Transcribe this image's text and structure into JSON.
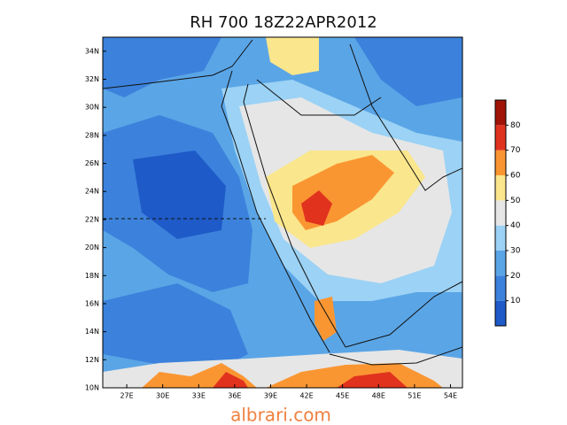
{
  "title": "RH 700 18Z22APR2012",
  "map": {
    "lon_range": [
      25,
      55
    ],
    "lat_range": [
      10,
      35
    ],
    "lon_labels": [
      {
        "value": 27,
        "label": "27E"
      },
      {
        "value": 30,
        "label": "30E"
      },
      {
        "value": 33,
        "label": "33E"
      },
      {
        "value": 36,
        "label": "36E"
      },
      {
        "value": 39,
        "label": "39E"
      },
      {
        "value": 42,
        "label": "42E"
      },
      {
        "value": 45,
        "label": "45E"
      },
      {
        "value": 48,
        "label": "48E"
      },
      {
        "value": 51,
        "label": "51E"
      },
      {
        "value": 54,
        "label": "54E"
      }
    ],
    "lat_labels": [
      {
        "value": 10,
        "label": "10N"
      },
      {
        "value": 12,
        "label": "12N"
      },
      {
        "value": 14,
        "label": "14N"
      },
      {
        "value": 16,
        "label": "16N"
      },
      {
        "value": 18,
        "label": "18N"
      },
      {
        "value": 20,
        "label": "20N"
      },
      {
        "value": 22,
        "label": "22N"
      },
      {
        "value": 24,
        "label": "24N"
      },
      {
        "value": 26,
        "label": "26N"
      },
      {
        "value": 28,
        "label": "28N"
      },
      {
        "value": 30,
        "label": "30N"
      },
      {
        "value": 32,
        "label": "32N"
      },
      {
        "value": 34,
        "label": "34N"
      }
    ]
  },
  "colorbar": {
    "range": [
      0,
      90
    ],
    "ticks": [
      10,
      20,
      30,
      40,
      50,
      60,
      70,
      80
    ],
    "colors": [
      "#1e5ac8",
      "#3c82dc",
      "#5aa5e6",
      "#9bd2f5",
      "#e6e6e6",
      "#fae68c",
      "#fa9632",
      "#e1321e",
      "#a01408"
    ]
  },
  "watermark": "albrari.com"
}
